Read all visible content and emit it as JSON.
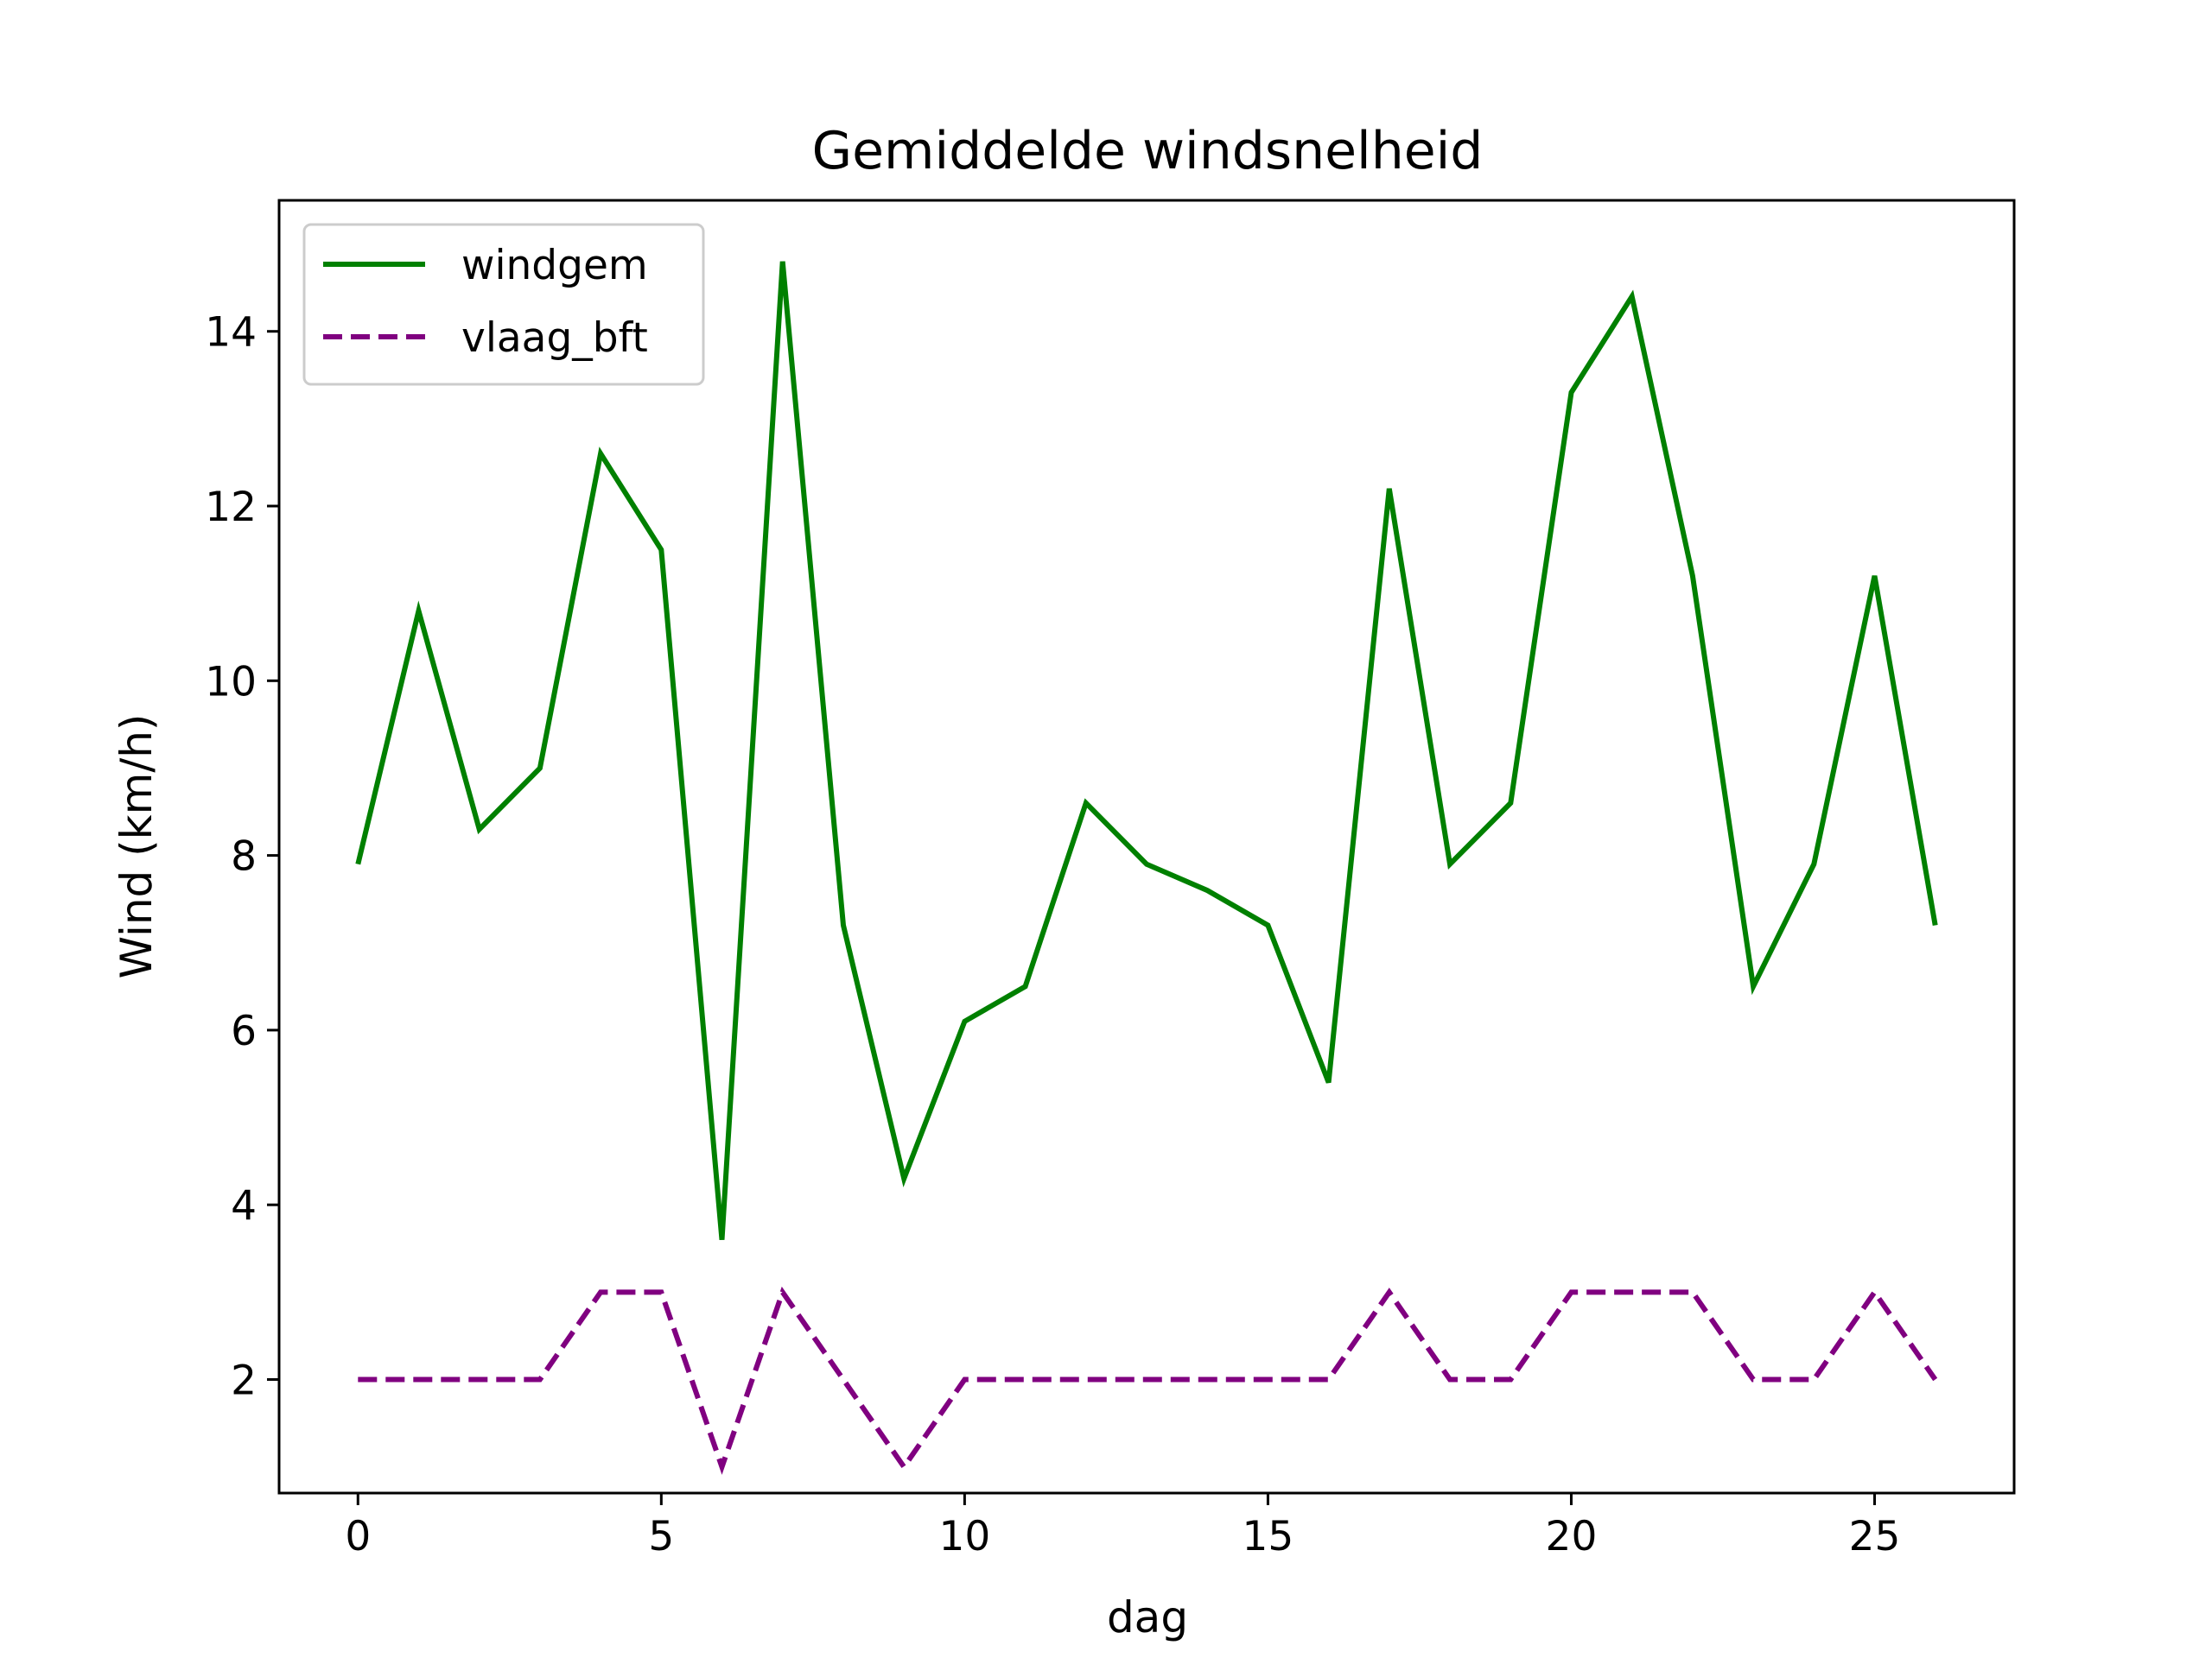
{
  "chart_data": {
    "type": "line",
    "title": "Gemiddelde windsnelheid",
    "xlabel": "dag",
    "ylabel": "Wind (km/h)",
    "x": [
      0,
      1,
      2,
      3,
      4,
      5,
      6,
      7,
      8,
      9,
      10,
      11,
      12,
      13,
      14,
      15,
      16,
      17,
      18,
      19,
      20,
      21,
      22,
      23,
      24,
      25,
      26
    ],
    "xlim": [
      -1.3,
      27.3
    ],
    "ylim": [
      0.7,
      15.5
    ],
    "xticks": [
      0,
      5,
      10,
      15,
      20,
      25
    ],
    "yticks": [
      2,
      4,
      6,
      8,
      10,
      12,
      14
    ],
    "grid": false,
    "legend_position": "top-left",
    "series": [
      {
        "name": "windgem",
        "color": "#008000",
        "style": "solid",
        "values": [
          7.9,
          10.8,
          8.3,
          9.0,
          12.6,
          11.5,
          3.6,
          14.8,
          7.2,
          4.3,
          6.1,
          6.5,
          8.6,
          7.9,
          7.6,
          7.2,
          5.4,
          12.2,
          7.9,
          8.6,
          13.3,
          14.4,
          11.2,
          6.5,
          7.9,
          11.2,
          7.2
        ]
      },
      {
        "name": "vlaag_bft",
        "color": "#800080",
        "style": "dashed",
        "values": [
          2,
          2,
          2,
          2,
          3,
          3,
          1,
          3,
          2,
          1,
          2,
          2,
          2,
          2,
          2,
          2,
          2,
          3,
          2,
          2,
          3,
          3,
          3,
          2,
          2,
          3,
          2
        ]
      }
    ]
  }
}
